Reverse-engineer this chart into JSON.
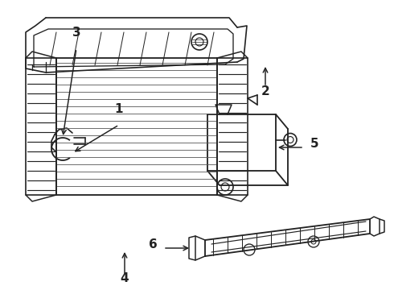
{
  "bg_color": "#ffffff",
  "line_color": "#222222",
  "line_width": 1.2,
  "figsize": [
    4.9,
    3.6
  ],
  "dpi": 100
}
